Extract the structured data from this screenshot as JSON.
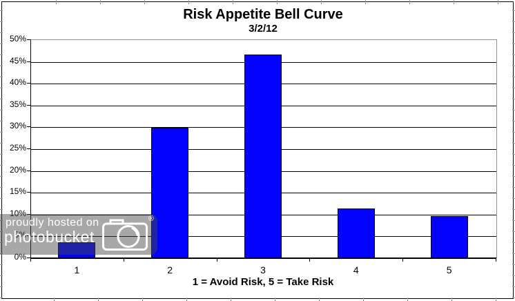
{
  "chart_data": {
    "type": "bar",
    "title": "Risk Appetite Bell Curve",
    "subtitle": "3/2/12",
    "categories": [
      "1",
      "2",
      "3",
      "4",
      "5"
    ],
    "values": [
      3.5,
      29.7,
      46.5,
      11.3,
      9.5
    ],
    "xlabel": "1 = Avoid Risk, 5 = Take Risk",
    "ylabel": "",
    "ylim": [
      0,
      50
    ],
    "ytick_step": 5,
    "ytick_suffix": "%",
    "grid": "horizontal",
    "legend_position": "none",
    "bar_color": "#0202fe",
    "bar_border_color": "#000000",
    "gridline_color": "#000000",
    "plot_border_color": "#909090"
  },
  "watermark": {
    "line1": "proudly hosted on",
    "line2": "photobucket",
    "registered_mark": "®",
    "icon": "camera-icon",
    "overlay_color": "#464646",
    "text_color": "#ffffff"
  }
}
